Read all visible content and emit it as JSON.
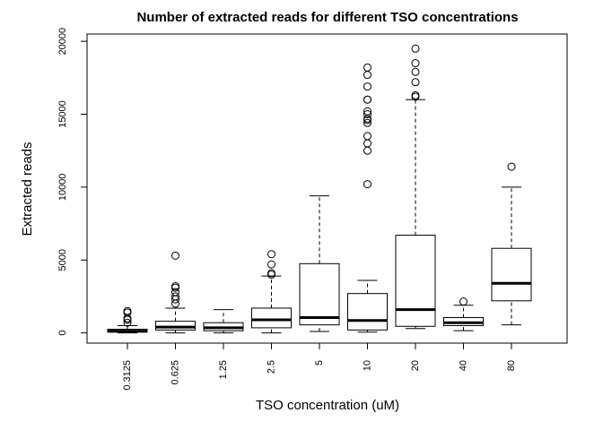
{
  "chart_data": {
    "type": "boxplot",
    "title": "Number of extracted reads for different TSO concentrations",
    "xlabel": "TSO concentration (uM)",
    "ylabel": "Extracted reads",
    "ylim": [
      -700,
      20500
    ],
    "yticks": [
      0,
      5000,
      10000,
      15000,
      20000
    ],
    "categories": [
      "0.3125",
      "0.625",
      "1.25",
      "2.5",
      "5",
      "10",
      "20",
      "40",
      "80"
    ],
    "boxes": [
      {
        "whisker_low": 0,
        "q1": 50,
        "median": 120,
        "q3": 250,
        "whisker_high": 500,
        "outliers": [
          700,
          900,
          1000,
          1400,
          1500
        ]
      },
      {
        "whisker_low": 0,
        "q1": 200,
        "median": 400,
        "q3": 800,
        "whisker_high": 1700,
        "outliers": [
          2000,
          2300,
          2500,
          2800,
          3100,
          3200,
          5300
        ]
      },
      {
        "whisker_low": 0,
        "q1": 150,
        "median": 350,
        "q3": 700,
        "whisker_high": 1600,
        "outliers": []
      },
      {
        "whisker_low": 0,
        "q1": 350,
        "median": 900,
        "q3": 1700,
        "whisker_high": 3900,
        "outliers": [
          4000,
          4100,
          4700,
          5400
        ]
      },
      {
        "whisker_low": 100,
        "q1": 550,
        "median": 1050,
        "q3": 4750,
        "whisker_high": 9400,
        "outliers": []
      },
      {
        "whisker_low": 50,
        "q1": 200,
        "median": 850,
        "q3": 2700,
        "whisker_high": 3600,
        "outliers": [
          10200,
          12500,
          13000,
          13500,
          14400,
          14600,
          14700,
          15000,
          15200,
          16000,
          16000,
          16900,
          17700,
          18200
        ]
      },
      {
        "whisker_low": 300,
        "q1": 450,
        "median": 1600,
        "q3": 6700,
        "whisker_high": 16000,
        "outliers": [
          16200,
          16300,
          17200,
          17900,
          18500,
          19500
        ]
      },
      {
        "whisker_low": 150,
        "q1": 500,
        "median": 700,
        "q3": 1050,
        "whisker_high": 1900,
        "outliers": [
          2150
        ]
      },
      {
        "whisker_low": 550,
        "q1": 2200,
        "median": 3400,
        "q3": 5800,
        "whisker_high": 10000,
        "outliers": [
          11400
        ]
      }
    ]
  }
}
